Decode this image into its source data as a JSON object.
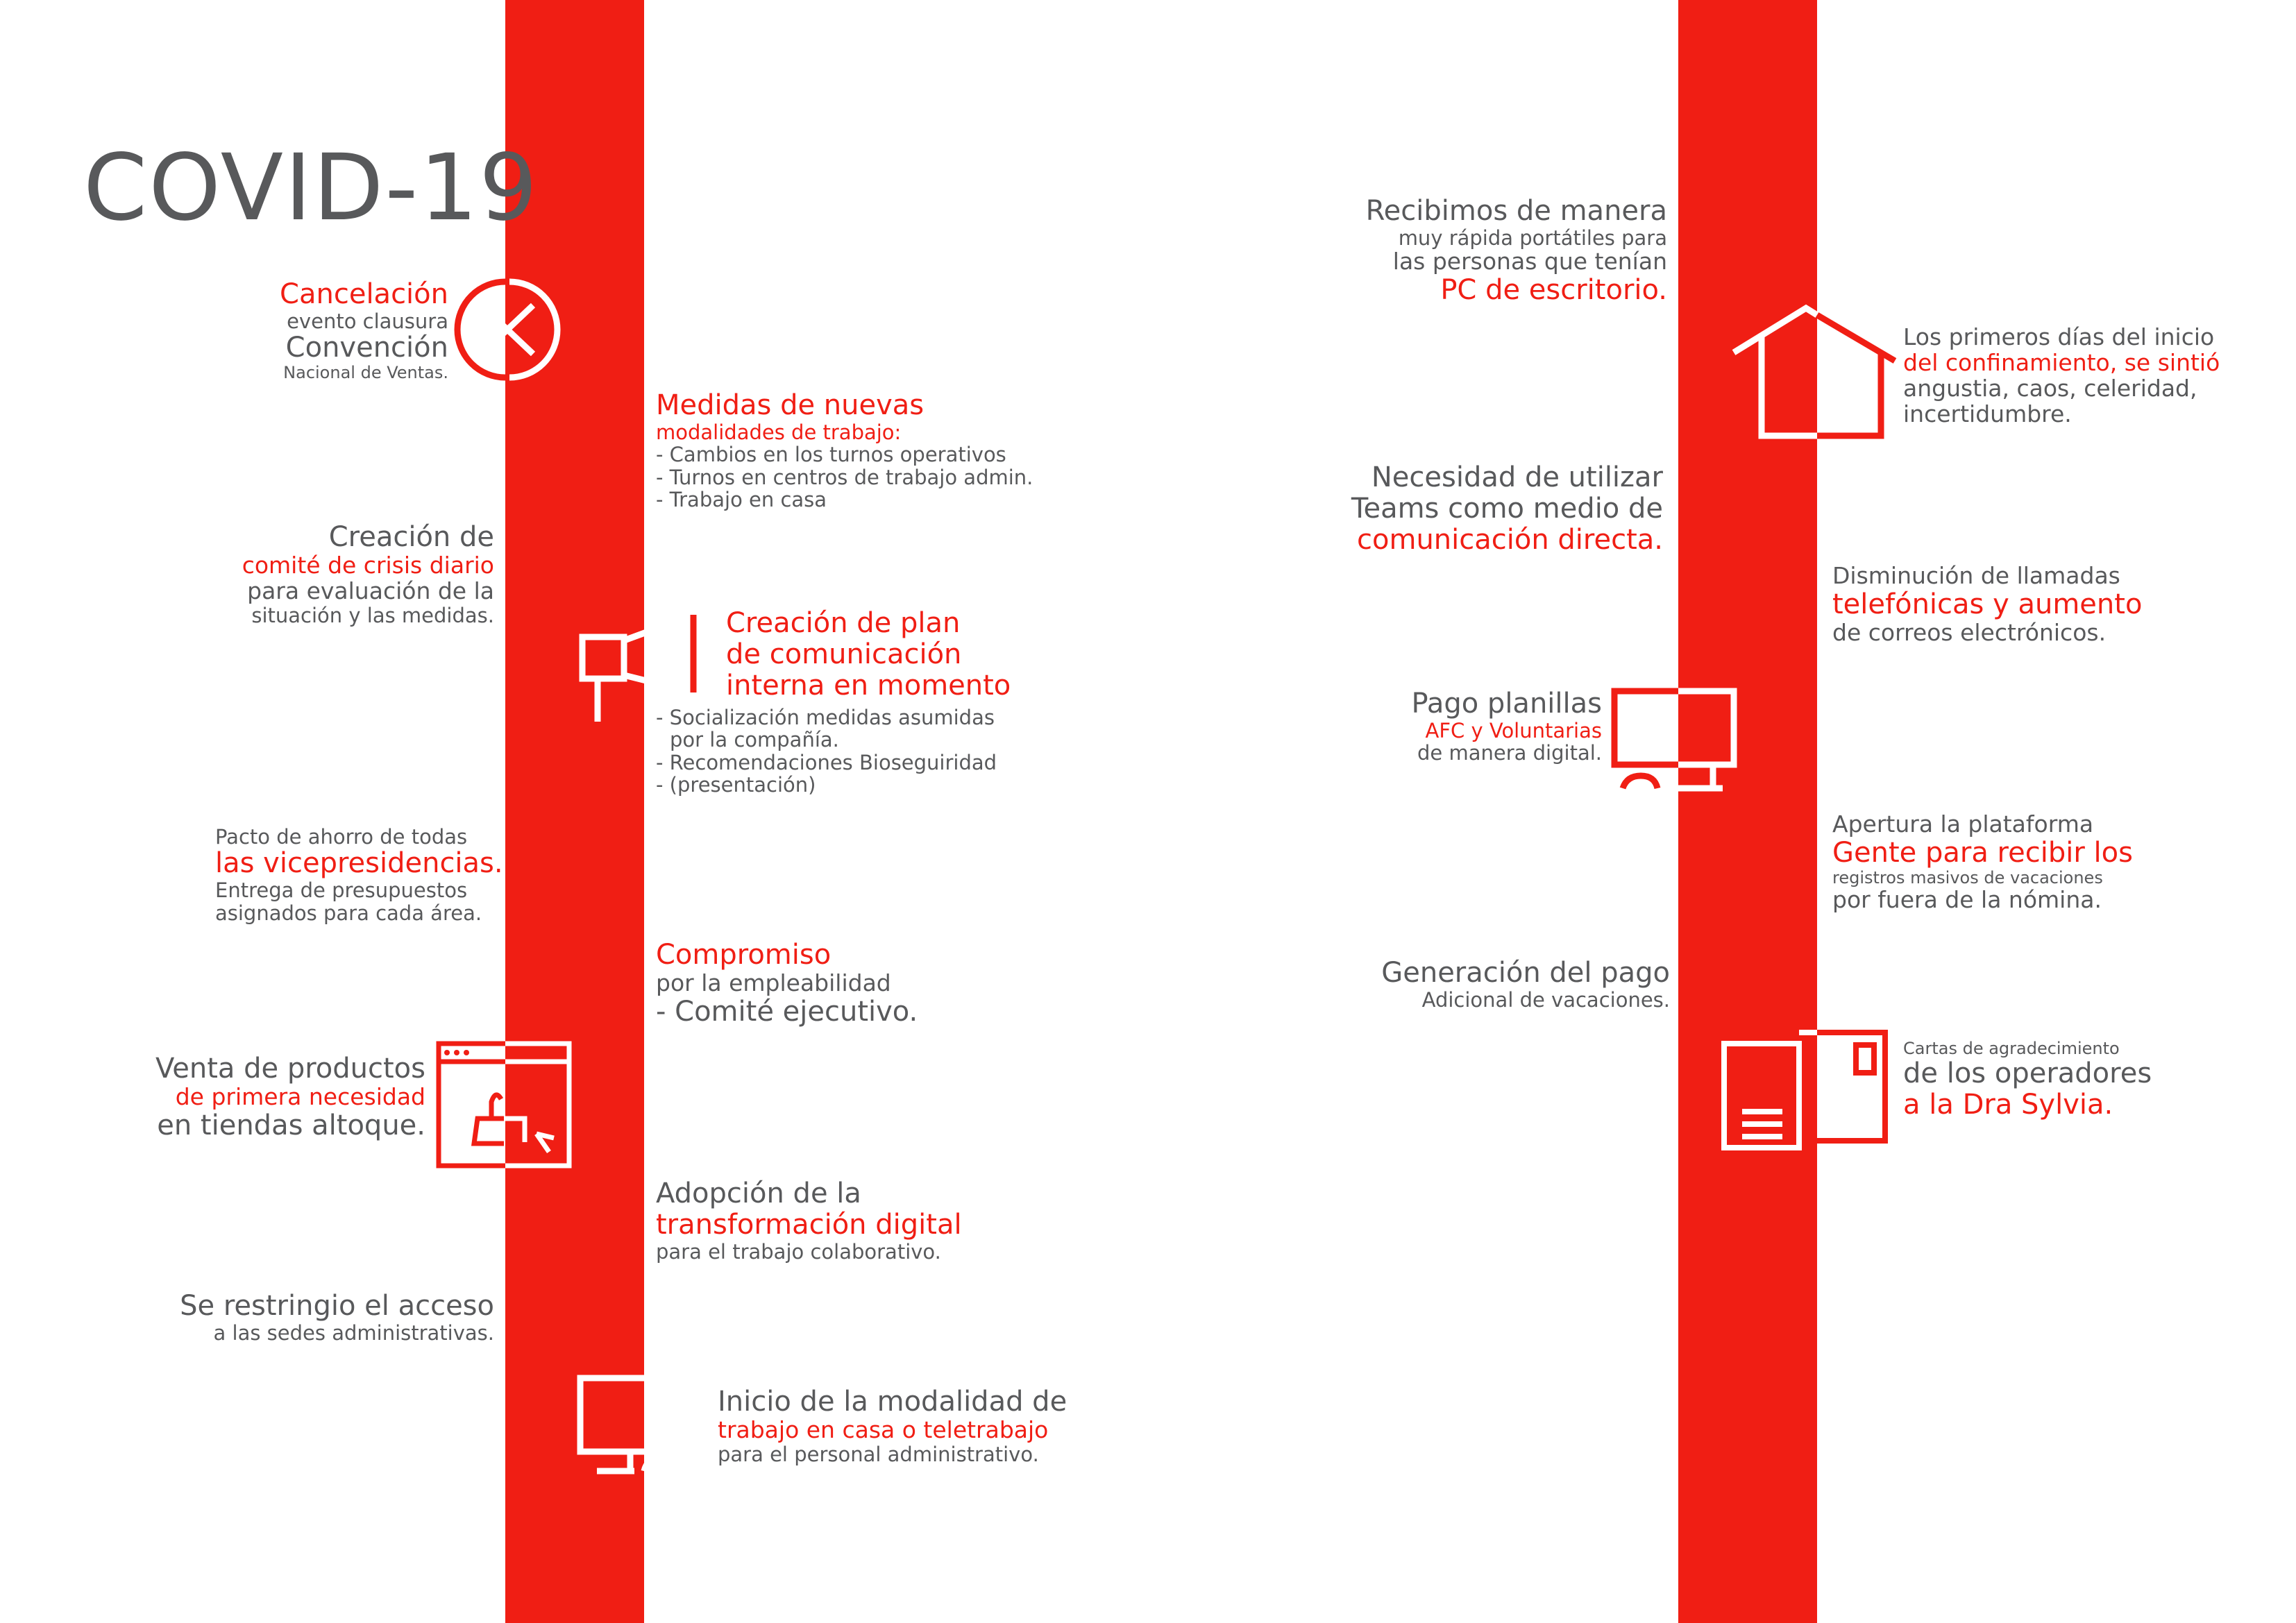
{
  "title": "COVID-19",
  "colors": {
    "accent": "#f01e14",
    "text": "#58595b",
    "background": "#ffffff"
  },
  "left_items": {
    "cancelacion": {
      "l1": "Cancelación",
      "l2": "evento clausura",
      "l3": "Convención",
      "l4": "Nacional de Ventas."
    },
    "comite": {
      "l1": "Creación de",
      "l2": "comité de crisis diario",
      "l3": "para evaluación de la",
      "l4": "situación y las medidas."
    },
    "pacto": {
      "l1": "Pacto de ahorro de todas",
      "l2": "las vicepresidencias.",
      "l3": "Entrega de presupuestos",
      "l4": "asignados para cada área."
    },
    "venta": {
      "l1": "Venta de productos",
      "l2": "de primera necesidad",
      "l3": "en tiendas altoque."
    },
    "restringio": {
      "l1": "Se restringio el acceso",
      "l2": "a las sedes administrativas."
    }
  },
  "center_items": {
    "medidas": {
      "l1": "Medidas de nuevas",
      "l2": "modalidades de trabajo:",
      "b1": "- Cambios en los turnos operativos",
      "b2": "- Turnos en centros de trabajo admin.",
      "b3": "- Trabajo en casa"
    },
    "plan": {
      "l1": "Creación de plan",
      "l2": "de comunicación",
      "l3": "interna en momento",
      "b1": "- Socialización medidas asumidas",
      "b2": "por la compañía.",
      "b3": "- Recomendaciones Bioseguiridad",
      "b4": "- (presentación)"
    },
    "compromiso": {
      "l1": "Compromiso",
      "l2": "por la empleabilidad",
      "l3": "- Comité ejecutivo."
    },
    "adopcion": {
      "l1": "Adopción de la",
      "l2": "transformación digital",
      "l3": "para el trabajo colaborativo."
    },
    "inicio": {
      "l1": "Inicio de la modalidad de",
      "l2": "trabajo en casa o teletrabajo",
      "l3": "para el personal administrativo."
    }
  },
  "right_left_items": {
    "recibimos": {
      "l1": "Recibimos de manera",
      "l2": "muy rápida portátiles para",
      "l3": "las personas que tenían",
      "l4": "PC de escritorio."
    },
    "teams": {
      "l1": "Necesidad de utilizar",
      "l2": "Teams como medio de",
      "l3": "comunicación directa."
    },
    "planillas": {
      "l1": "Pago planillas",
      "l2": "AFC y Voluntarias",
      "l3": "de manera digital."
    },
    "pago": {
      "l1": "Generación del pago",
      "l2": "Adicional de vacaciones."
    }
  },
  "right_right_items": {
    "confinamiento": {
      "l1": "Los primeros días del inicio",
      "l2": "del confinamiento, se sintió",
      "l3": "angustia, caos, celeridad,",
      "l4": "incertidumbre."
    },
    "llamadas": {
      "l1": "Disminución de llamadas",
      "l2": "telefónicas y aumento",
      "l3": "de correos electrónicos."
    },
    "plataforma": {
      "l1": "Apertura la plataforma",
      "l2": "Gente para recibir los",
      "l3": "registros masivos de vacaciones",
      "l4": "por fuera de la nómina."
    },
    "cartas": {
      "l1": "Cartas de agradecimiento",
      "l2": "de los operadores",
      "l3": "a la Dra Sylvia."
    }
  }
}
